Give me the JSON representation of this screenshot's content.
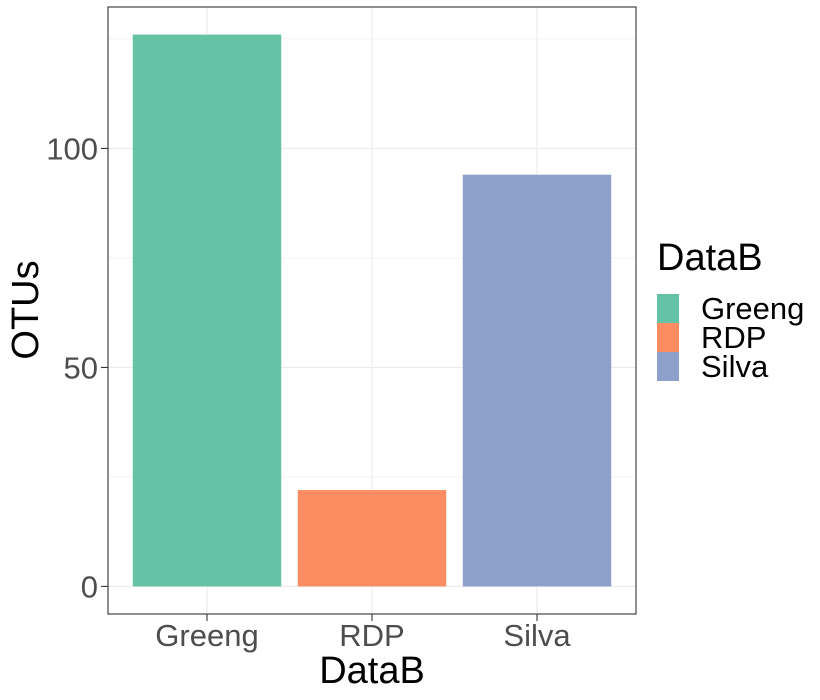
{
  "chart_data": {
    "type": "bar",
    "categories": [
      "Greeng",
      "RDP",
      "Silva"
    ],
    "values": [
      126,
      22,
      94
    ],
    "colors": [
      "#66c2a5",
      "#fc8d62",
      "#8da0cb"
    ],
    "xlabel": "DataB",
    "ylabel": "OTUs",
    "ylim": [
      -6.3,
      132.3
    ],
    "yticks": [
      0,
      50,
      100
    ],
    "grid": true,
    "legend": {
      "title": "DataB",
      "position": "right",
      "entries": [
        "Greeng",
        "RDP",
        "Silva"
      ]
    }
  }
}
